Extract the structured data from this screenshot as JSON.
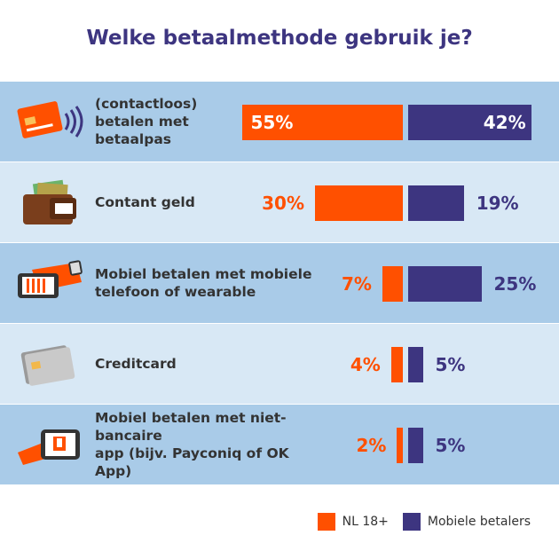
{
  "title": "Welke betaalmethode gebruik je?",
  "colors": {
    "nl": "#ff5000",
    "mobiele": "#3d3580",
    "row_dark": "#a9cbe8",
    "row_light": "#d8e8f5"
  },
  "legend": {
    "nl": "NL 18+",
    "mobiele": "Mobiele betalers"
  },
  "chart_data": {
    "type": "bar",
    "orientation": "horizontal-diverging",
    "title": "Welke betaalmethode gebruik je?",
    "categories": [
      "(contactloos)\nbetalen met\nbetaalpas",
      "Contant geld",
      "Mobiel betalen met mobiele\ntelefoon of wearable",
      "Creditcard",
      "Mobiel betalen met niet-bancaire\napp (bijv. Payconiq of OK App)"
    ],
    "icons": [
      "contactless-card-icon",
      "wallet-icon",
      "smartwatch-phone-icon",
      "creditcard-icon",
      "phone-app-icon"
    ],
    "unit": "%",
    "series": [
      {
        "name": "NL 18+",
        "values": [
          55,
          30,
          7,
          4,
          2
        ]
      },
      {
        "name": "Mobiele betalers",
        "values": [
          42,
          19,
          25,
          5,
          5
        ]
      }
    ],
    "labels_nl": [
      "55%",
      "30%",
      "7%",
      "4%",
      "2%"
    ],
    "labels_mb": [
      "42%",
      "19%",
      "25%",
      "5%",
      "5%"
    ],
    "legend_position": "bottom-right",
    "grid": false
  }
}
